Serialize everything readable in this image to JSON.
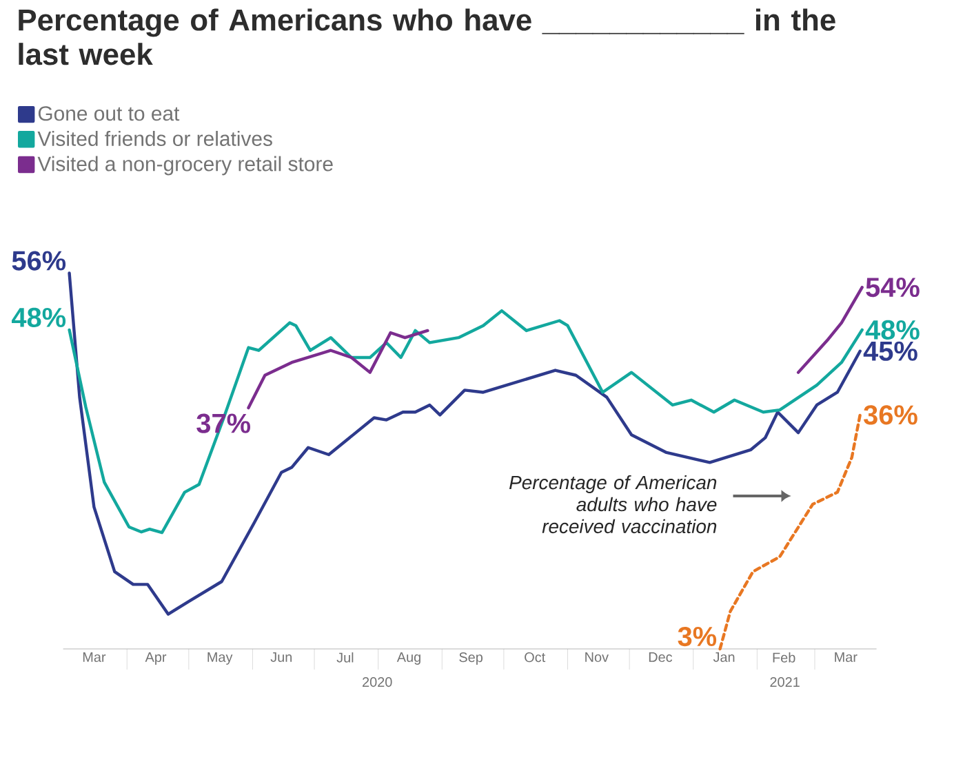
{
  "chart_data": {
    "type": "line",
    "title": "Percentage of Americans who have ____________ in the last week",
    "xlim": [
      "2020-03-01",
      "2021-03-31"
    ],
    "tick_labels": "x",
    "marker": "none",
    "legend": "top left",
    "xticks": [
      {
        "value": "2020-03-16",
        "label": "Mar"
      },
      {
        "value": "2020-04-15",
        "label": "Apr"
      },
      {
        "value": "2020-05-16",
        "label": "May"
      },
      {
        "value": "2020-06-15",
        "label": "Jun"
      },
      {
        "value": "2020-07-16",
        "label": "Jul"
      },
      {
        "value": "2020-08-16",
        "label": "Aug"
      },
      {
        "value": "2020-09-15",
        "label": "Sep"
      },
      {
        "value": "2020-10-16",
        "label": "Oct"
      },
      {
        "value": "2020-11-15",
        "label": "Nov"
      },
      {
        "value": "2020-12-16",
        "label": "Dec"
      },
      {
        "value": "2021-01-16",
        "label": "Jan"
      },
      {
        "value": "2021-02-14",
        "label": "Feb"
      },
      {
        "value": "2021-03-16",
        "label": "Mar"
      },
      {
        "value": "2020-04-01",
        "label": null
      },
      {
        "value": "2020-05-01",
        "label": null
      },
      {
        "value": "2020-06-01",
        "label": null
      },
      {
        "value": "2020-07-01",
        "label": null
      },
      {
        "value": "2020-08-01",
        "label": null
      },
      {
        "value": "2020-09-01",
        "label": null
      },
      {
        "value": "2020-10-01",
        "label": null
      },
      {
        "value": "2020-11-01",
        "label": null
      },
      {
        "value": "2020-12-01",
        "label": null
      },
      {
        "value": "2021-01-01",
        "label": null
      },
      {
        "value": "2021-02-01",
        "label": null
      },
      {
        "value": "2021-03-01",
        "label": null
      }
    ],
    "series": [
      {
        "name": "Gone out to eat",
        "color": "#2e3a8c",
        "x": [
          "2020-03-04",
          "2020-03-09",
          "2020-03-16",
          "2020-03-26",
          "2020-04-04",
          "2020-04-11",
          "2020-04-21",
          "2020-05-01",
          "2020-05-17",
          "2020-06-02",
          "2020-06-15",
          "2020-06-20",
          "2020-06-28",
          "2020-07-08",
          "2020-07-30",
          "2020-08-05",
          "2020-08-13",
          "2020-08-19",
          "2020-08-26",
          "2020-08-31",
          "2020-09-12",
          "2020-09-21",
          "2020-10-26",
          "2020-11-05",
          "2020-11-20",
          "2020-12-02",
          "2020-12-19",
          "2021-01-09",
          "2021-01-29",
          "2021-02-05",
          "2021-02-11",
          "2021-02-21",
          "2021-03-02",
          "2021-03-12",
          "2021-03-23"
        ],
        "values": [
          56,
          38.5,
          23,
          13.9,
          12.1,
          12.1,
          7.9,
          9.7,
          12.5,
          20.9,
          27.9,
          28.6,
          31.4,
          30.4,
          35.6,
          35.3,
          36.4,
          36.4,
          37.4,
          36,
          39.5,
          39.2,
          42.3,
          41.6,
          38.5,
          33.2,
          30.7,
          29.3,
          31.1,
          32.8,
          36.4,
          33.5,
          37.4,
          39.2,
          45
        ],
        "value_labels": [
          "56%",
          null,
          null,
          null,
          null,
          null,
          null,
          null,
          null,
          null,
          null,
          null,
          null,
          null,
          null,
          null,
          null,
          null,
          null,
          null,
          null,
          null,
          null,
          null,
          null,
          null,
          null,
          null,
          null,
          null,
          null,
          null,
          null,
          null,
          "45%"
        ]
      },
      {
        "name": "Visited friends or relatives",
        "color": "#13a89e",
        "x": [
          "2020-03-04",
          "2020-03-12",
          "2020-03-21",
          "2020-04-02",
          "2020-04-08",
          "2020-04-12",
          "2020-04-18",
          "2020-04-29",
          "2020-05-06",
          "2020-05-18",
          "2020-05-30",
          "2020-06-04",
          "2020-06-19",
          "2020-06-22",
          "2020-06-29",
          "2020-07-09",
          "2020-07-19",
          "2020-07-28",
          "2020-08-05",
          "2020-08-12",
          "2020-08-19",
          "2020-08-26",
          "2020-09-09",
          "2020-09-21",
          "2020-09-30",
          "2020-10-12",
          "2020-10-28",
          "2020-11-01",
          "2020-11-18",
          "2020-12-02",
          "2020-12-22",
          "2020-12-31",
          "2021-01-11",
          "2021-01-21",
          "2021-02-04",
          "2021-02-12",
          "2021-03-02",
          "2021-03-14",
          "2021-03-24"
        ],
        "values": [
          48,
          37.1,
          26.5,
          20.2,
          19.5,
          19.9,
          19.4,
          25.1,
          26.2,
          35.6,
          45.5,
          45.1,
          49,
          48.6,
          45.1,
          46.9,
          44.1,
          44.1,
          46.2,
          44.1,
          47.9,
          46.2,
          46.9,
          48.6,
          50.7,
          47.9,
          49.3,
          48.6,
          39.2,
          42,
          37.4,
          38.1,
          36.4,
          38.1,
          36.4,
          36.7,
          40.2,
          43.4,
          48
        ],
        "value_labels": [
          "48%",
          null,
          null,
          null,
          null,
          null,
          null,
          null,
          null,
          null,
          null,
          null,
          null,
          null,
          null,
          null,
          null,
          null,
          null,
          null,
          null,
          null,
          null,
          null,
          null,
          null,
          null,
          null,
          null,
          null,
          null,
          null,
          null,
          null,
          null,
          null,
          null,
          null,
          "48%"
        ]
      },
      {
        "name": "Visited a non-grocery retail store",
        "color": "#7b2d8e",
        "x": [
          "2020-05-30",
          "2020-06-07",
          "2020-06-20",
          "2020-07-09",
          "2020-07-19",
          "2020-07-28",
          "2020-08-07",
          "2020-08-14",
          "2020-08-25",
          "2020-12-01",
          "2021-02-21",
          "2021-03-07",
          "2021-03-14",
          "2021-03-24"
        ],
        "values": [
          37,
          41.6,
          43.4,
          45.1,
          44.1,
          42,
          47.6,
          46.9,
          47.9,
          null,
          42,
          46.5,
          49,
          54
        ],
        "value_labels": [
          "37%",
          null,
          null,
          null,
          null,
          null,
          null,
          null,
          null,
          null,
          null,
          null,
          null,
          "54%"
        ]
      },
      {
        "color": "#e87722",
        "line_style": "dashed",
        "x": [
          "2021-01-14",
          "2021-01-19",
          "2021-01-30",
          "2021-02-12",
          "2021-02-28",
          "2021-03-12",
          "2021-03-19",
          "2021-03-23"
        ],
        "values": [
          3,
          8.3,
          13.9,
          16,
          23.4,
          25.1,
          30,
          36
        ],
        "value_labels": [
          "3%",
          null,
          null,
          null,
          null,
          null,
          null,
          "36%"
        ]
      }
    ],
    "annotations": [
      "Percentage of American adults who have received vaccination",
      "2020",
      "2021"
    ]
  }
}
